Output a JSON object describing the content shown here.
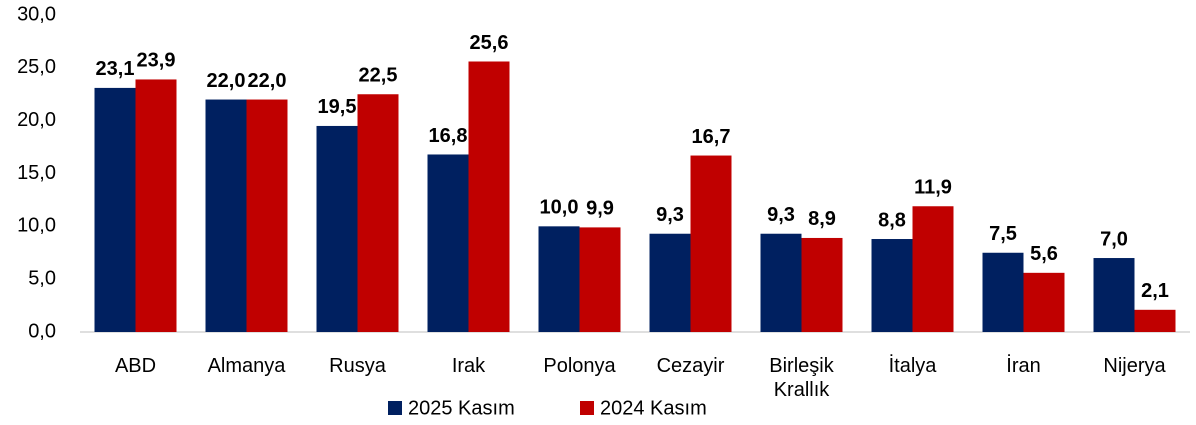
{
  "chart_data": {
    "type": "bar",
    "categories": [
      "ABD",
      "Almanya",
      "Rusya",
      "Irak",
      "Polonya",
      "Cezayir",
      "Birleşik Krallık",
      "İtalya",
      "İran",
      "Nijerya"
    ],
    "series": [
      {
        "name": "2025 Kasım",
        "color": "#002060",
        "values": [
          23.1,
          22.0,
          19.5,
          16.8,
          10.0,
          9.3,
          9.3,
          8.8,
          7.5,
          7.0
        ],
        "value_labels": [
          "23,1",
          "22,0",
          "19,5",
          "16,8",
          "10,0",
          "9,3",
          "9,3",
          "8,8",
          "7,5",
          "7,0"
        ]
      },
      {
        "name": "2024 Kasım",
        "color": "#c00000",
        "values": [
          23.9,
          22.0,
          22.5,
          25.6,
          9.9,
          16.7,
          8.9,
          11.9,
          5.6,
          2.1
        ],
        "value_labels": [
          "23,9",
          "22,0",
          "22,5",
          "25,6",
          "9,9",
          "16,7",
          "8,9",
          "11,9",
          "5,6",
          "2,1"
        ]
      }
    ],
    "ylim": [
      0,
      30
    ],
    "yticks": [
      {
        "value": 0,
        "label": "0,0"
      },
      {
        "value": 5,
        "label": "5,0"
      },
      {
        "value": 10,
        "label": "10,0"
      },
      {
        "value": 15,
        "label": "15,0"
      },
      {
        "value": 20,
        "label": "20,0"
      },
      {
        "value": 25,
        "label": "25,0"
      },
      {
        "value": 30,
        "label": "30,0"
      }
    ],
    "legend": "bottom"
  }
}
